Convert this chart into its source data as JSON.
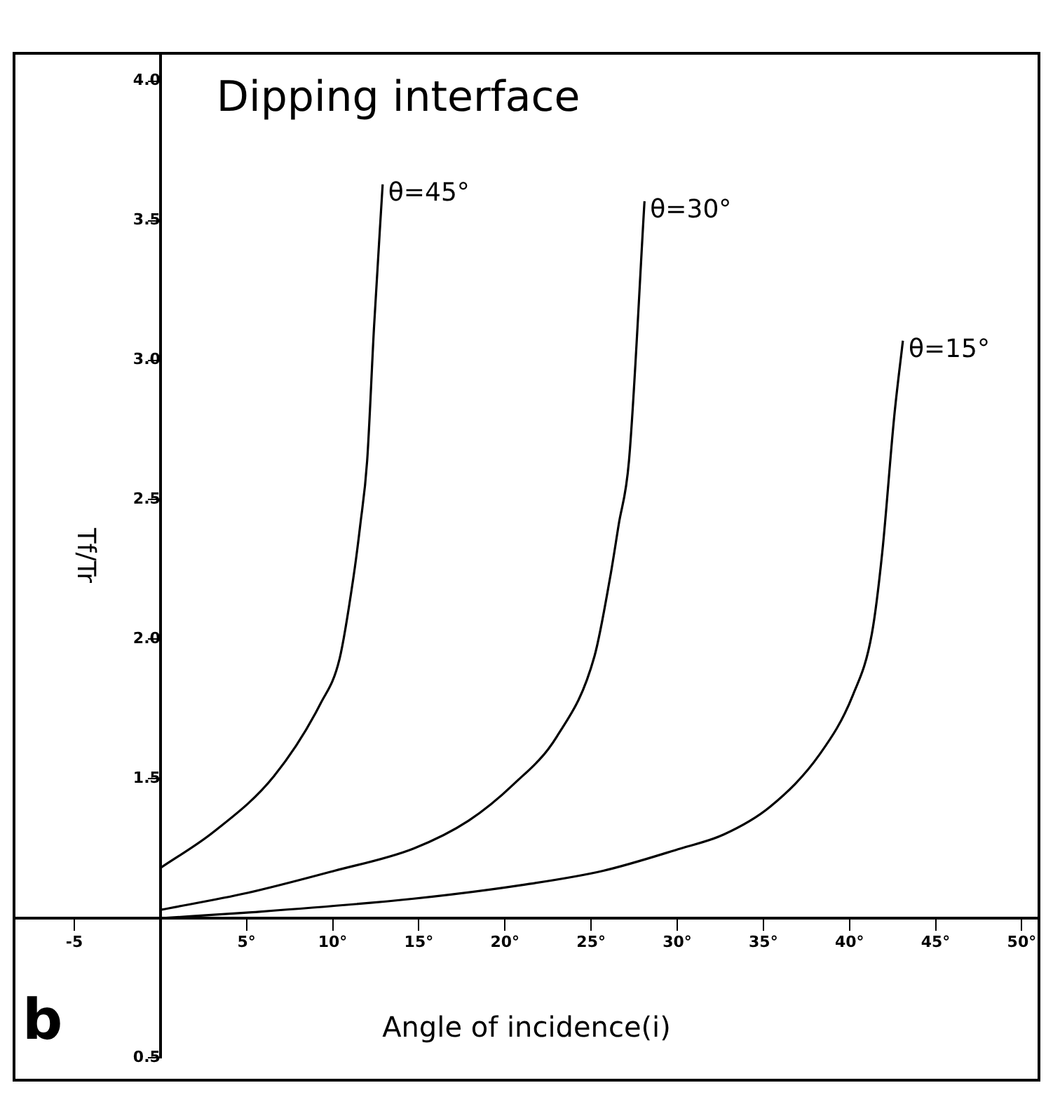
{
  "chart_data": {
    "type": "line",
    "title": "Dipping interface",
    "xlabel": "Angle of incidence(i)",
    "ylabel": "Tf/Tr",
    "annotations": [
      "b"
    ],
    "series": [
      {
        "name": "θ=45°",
        "color": "#000000",
        "x": [
          0,
          3.1,
          6.6,
          9.3,
          10.4,
          11.2,
          11.6,
          12.0,
          12.4,
          12.9
        ],
        "values": [
          1.18,
          1.31,
          1.51,
          1.77,
          1.93,
          2.22,
          2.41,
          2.64,
          3.12,
          3.63
        ]
      },
      {
        "name": "θ=30°",
        "color": "#000000",
        "x": [
          0,
          5,
          10.1,
          14.7,
          17.9,
          20.5,
          23,
          25.2,
          26.1,
          26.6,
          27.2,
          28.1
        ],
        "values": [
          1.03,
          1.09,
          1.17,
          1.25,
          1.35,
          1.48,
          1.65,
          1.94,
          2.22,
          2.41,
          2.64,
          3.57
        ]
      },
      {
        "name": "θ=15°",
        "color": "#000000",
        "x": [
          0,
          5,
          14.7,
          21.1,
          25.7,
          30.2,
          32.7,
          35.4,
          38.3,
          40.2,
          41.3,
          41.9,
          42.6,
          43.1
        ],
        "values": [
          1.0,
          1.02,
          1.07,
          1.12,
          1.17,
          1.25,
          1.3,
          1.4,
          1.59,
          1.8,
          2.02,
          2.31,
          2.8,
          3.07
        ]
      }
    ],
    "xlim": [
      -8.5,
      51
    ],
    "ylim": [
      0.5,
      4.1
    ],
    "xticks": [
      -5,
      {
        "value": 5,
        "label": "5°"
      },
      {
        "value": 10,
        "label": "10°"
      },
      {
        "value": 15,
        "label": "15°"
      },
      {
        "value": 20,
        "label": "20°"
      },
      {
        "value": 25,
        "label": "25°"
      },
      {
        "value": 30,
        "label": "30°"
      },
      {
        "value": 35,
        "label": "35°"
      },
      {
        "value": 40,
        "label": "40°"
      },
      {
        "value": 45,
        "label": "45°"
      },
      {
        "value": 50,
        "label": "50°"
      }
    ],
    "yticks": [
      0.5,
      1.5,
      {
        "value": 2,
        "label": "2.0"
      },
      2.5,
      {
        "value": 3,
        "label": "3.0"
      },
      3.5,
      {
        "value": 4,
        "label": "4.0"
      }
    ],
    "grid": false,
    "legend": false,
    "marker": "none"
  }
}
